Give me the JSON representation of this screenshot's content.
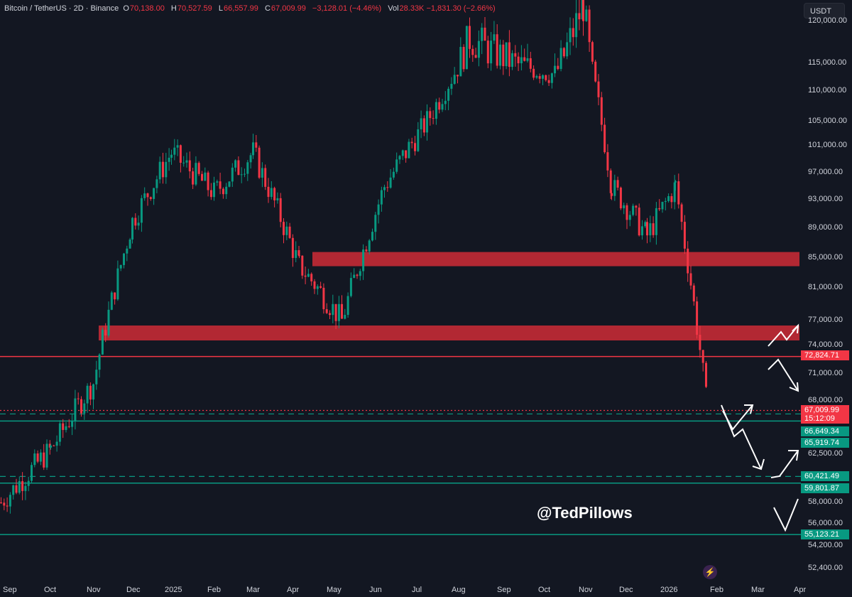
{
  "header": {
    "symbol": "Bitcoin / TetherUS · 2D · Binance",
    "open_label": "O",
    "open": "70,138.00",
    "high_label": "H",
    "high": "70,527.59",
    "low_label": "L",
    "low": "66,557.99",
    "close_label": "C",
    "close": "67,009.99",
    "change": "−3,128.01 (−4.46%)",
    "vol_label": "Vol",
    "vol": "28.33K  −1,831.30 (−2.66%)"
  },
  "currency_button": "USDT",
  "watermark": "@TedPillows",
  "colors": {
    "background": "#131722",
    "up": "#089981",
    "down": "#f23645",
    "zone": "#b22833",
    "arrow": "#ffffff"
  },
  "chart_data": {
    "type": "candlestick",
    "title": "Bitcoin / TetherUS · 2D · Binance",
    "xlabel": "",
    "ylabel": "USDT",
    "x_ticks": [
      "Sep",
      "Oct",
      "Nov",
      "Dec",
      "2025",
      "Feb",
      "Mar",
      "Apr",
      "May",
      "Jun",
      "Jul",
      "Aug",
      "Sep",
      "Oct",
      "Nov",
      "Dec",
      "2026",
      "Feb",
      "Mar",
      "Apr"
    ],
    "y_ticks": [
      120000,
      115000,
      110000,
      105000,
      101000,
      97000,
      93000,
      89000,
      85000,
      81000,
      77000,
      74000,
      71000,
      68000,
      62500,
      58000,
      56000,
      54200,
      52400
    ],
    "ylim": [
      51500,
      124500
    ],
    "approx_close_path": [
      {
        "t": "Sep 2024",
        "price": 58000
      },
      {
        "t": "Oct 2024",
        "price": 63000
      },
      {
        "t": "Nov 2024",
        "price": 70000
      },
      {
        "t": "Nov 2024",
        "price": 90000
      },
      {
        "t": "Dec 2024",
        "price": 100000
      },
      {
        "t": "Jan 2025",
        "price": 94000
      },
      {
        "t": "Feb 2025",
        "price": 100000
      },
      {
        "t": "Mar 2025",
        "price": 84000
      },
      {
        "t": "Apr 2025",
        "price": 77000
      },
      {
        "t": "May 2025",
        "price": 95000
      },
      {
        "t": "Jun 2025",
        "price": 105000
      },
      {
        "t": "Jul 2025",
        "price": 118000
      },
      {
        "t": "Aug 2025",
        "price": 115000
      },
      {
        "t": "Sep 2025",
        "price": 113000
      },
      {
        "t": "Oct 2025",
        "price": 122000
      },
      {
        "t": "Nov 2025",
        "price": 95000
      },
      {
        "t": "Dec 2025",
        "price": 88000
      },
      {
        "t": "Jan 2026",
        "price": 95000
      },
      {
        "t": "Feb 2026",
        "price": 67009.99
      }
    ],
    "zones": [
      {
        "type": "resistance",
        "from": 84000,
        "to": 86000
      },
      {
        "type": "resistance",
        "from": 74500,
        "to": 76500
      }
    ],
    "levels": [
      {
        "price": 72824.71,
        "label": "72,824.71",
        "color": "red",
        "style": "solid"
      },
      {
        "price": 67009.99,
        "label": "67,009.99",
        "countdown": "15:12:09",
        "color": "red",
        "style": "dotted"
      },
      {
        "price": 66649.34,
        "label": "66,649.34",
        "color": "green",
        "style": "dashed"
      },
      {
        "price": 65919.74,
        "label": "65,919.74",
        "color": "green",
        "style": "solid"
      },
      {
        "price": 60421.49,
        "label": "60,421.49",
        "color": "green",
        "style": "dashed"
      },
      {
        "price": 59801.87,
        "label": "59,801.87",
        "color": "green",
        "style": "solid"
      },
      {
        "price": 55123.21,
        "label": "55,123.21",
        "color": "green",
        "style": "solid"
      }
    ],
    "annotations": [
      "projection zig-zag arrows",
      "@TedPillows"
    ]
  }
}
